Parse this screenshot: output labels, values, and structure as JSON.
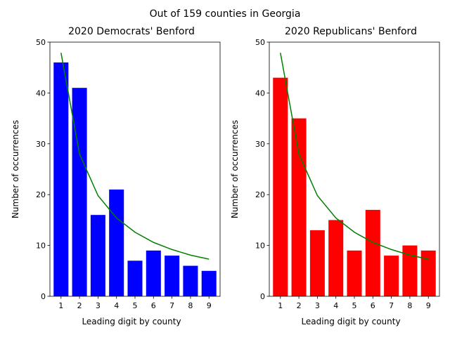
{
  "figure": {
    "suptitle": "Out of 159 counties in Georgia"
  },
  "chart_data": [
    {
      "type": "bar",
      "title": "2020 Democrats' Benford",
      "xlabel": "Leading digit by county",
      "ylabel": "Number of occurrences",
      "categories": [
        "1",
        "2",
        "3",
        "4",
        "5",
        "6",
        "7",
        "8",
        "9"
      ],
      "series": [
        {
          "type": "bar",
          "color": "#0000ff",
          "values": [
            46,
            41,
            16,
            21,
            7,
            9,
            8,
            6,
            5
          ]
        },
        {
          "type": "line",
          "color": "#008000",
          "values": [
            47.9,
            28.0,
            19.8,
            15.4,
            12.6,
            10.6,
            9.2,
            8.1,
            7.3
          ]
        }
      ],
      "ylim": [
        0,
        50
      ],
      "yticks": [
        0,
        10,
        20,
        30,
        40,
        50
      ],
      "grid": false
    },
    {
      "type": "bar",
      "title": "2020 Republicans' Benford",
      "xlabel": "Leading digit by county",
      "ylabel": "Number of occurrences",
      "categories": [
        "1",
        "2",
        "3",
        "4",
        "5",
        "6",
        "7",
        "8",
        "9"
      ],
      "series": [
        {
          "type": "bar",
          "color": "#ff0000",
          "values": [
            43,
            35,
            13,
            15,
            9,
            17,
            8,
            10,
            9
          ]
        },
        {
          "type": "line",
          "color": "#008000",
          "values": [
            47.9,
            28.0,
            19.8,
            15.4,
            12.6,
            10.6,
            9.2,
            8.1,
            7.3
          ]
        }
      ],
      "ylim": [
        0,
        50
      ],
      "yticks": [
        0,
        10,
        20,
        30,
        40,
        50
      ],
      "grid": false
    }
  ]
}
